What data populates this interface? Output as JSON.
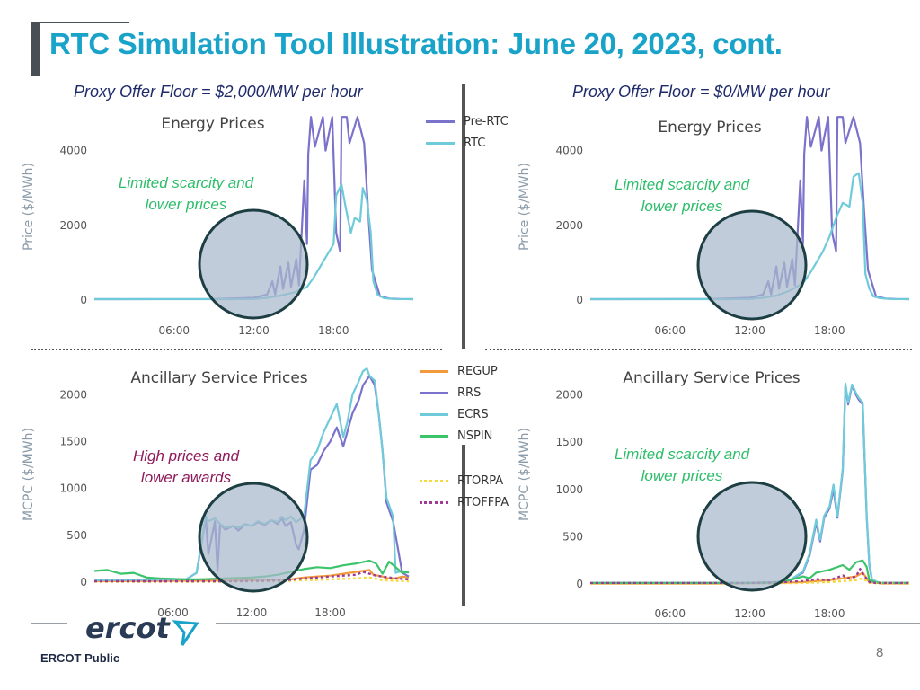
{
  "page_title": "RTC Simulation Tool Illustration: June 20, 2023, cont.",
  "floor_left": "Proxy Offer Floor = $2,000/MW per hour",
  "floor_right": "Proxy Offer Floor = $0/MW per hour",
  "footer": {
    "left": "ERCOT Public",
    "page_number": "8",
    "logo_text": "ercot"
  },
  "colors": {
    "pre_rtc": "#7b72cc",
    "rtc": "#6fcbd9",
    "regup": "#f39a3c",
    "rrs": "#7b72cc",
    "ecrs": "#6fcbd9",
    "nspin": "#3cc46a",
    "rtorpa": "#f7d83a",
    "rtoffpa": "#9e3c95",
    "annot_green": "#2ebd6b",
    "annot_purple": "#8e1a5a",
    "circle_fill": "#a9b9cc",
    "circle_stroke": "#1d3f44"
  },
  "energy_legend": [
    {
      "key": "pre_rtc",
      "label": "Pre-RTC",
      "style": "solid"
    },
    {
      "key": "rtc",
      "label": "RTC",
      "style": "solid"
    }
  ],
  "as_legend": [
    {
      "key": "regup",
      "label": "REGUP",
      "style": "solid"
    },
    {
      "key": "rrs",
      "label": "RRS",
      "style": "solid"
    },
    {
      "key": "ecrs",
      "label": "ECRS",
      "style": "solid"
    },
    {
      "key": "nspin",
      "label": "NSPIN",
      "style": "solid"
    },
    {
      "key": "rtorpa",
      "label": "RTORPA",
      "style": "dashed"
    },
    {
      "key": "rtoffpa",
      "label": "RTOFFPA",
      "style": "dashed"
    }
  ],
  "annotations": {
    "tl": {
      "line1": "Limited scarcity and",
      "line2": "lower prices",
      "color": "annot_green"
    },
    "tr": {
      "line1": "Limited scarcity and",
      "line2": "lower prices",
      "color": "annot_green"
    },
    "bl": {
      "line1": "High prices and",
      "line2": "lower awards",
      "color": "annot_purple"
    },
    "br": {
      "line1": "Limited scarcity and",
      "line2": "lower prices",
      "color": "annot_green"
    }
  },
  "chart_data": [
    {
      "id": "energy_left",
      "type": "line",
      "title": "Energy Prices",
      "xlabel": "",
      "ylabel": "Price ($/MWh)",
      "xlim": [
        0,
        24
      ],
      "ylim": [
        0,
        5000
      ],
      "grid": false,
      "xticks": [
        6,
        12,
        18
      ],
      "xtick_labels": [
        "06:00",
        "12:00",
        "18:00"
      ],
      "yticks": [
        0,
        2000,
        4000
      ],
      "ytick_labels": [
        "0",
        "2000",
        "4000"
      ],
      "series": [
        {
          "name": "Pre-RTC",
          "color_key": "pre_rtc",
          "x": [
            0,
            9,
            12,
            13,
            13.4,
            13.6,
            14,
            14.2,
            14.6,
            14.8,
            15.2,
            15.4,
            15.8,
            16,
            16.1,
            16.3,
            16.6,
            17.2,
            17.4,
            17.9,
            18.2,
            18.5,
            18.6,
            19,
            19.2,
            19.8,
            20.3,
            20.6,
            20.9,
            21.5,
            22.2,
            23,
            24
          ],
          "y": [
            25,
            30,
            60,
            150,
            500,
            150,
            900,
            300,
            1000,
            350,
            1100,
            400,
            3200,
            1500,
            3900,
            4900,
            4100,
            4900,
            4000,
            4900,
            1800,
            1300,
            4900,
            4900,
            4200,
            4900,
            4200,
            2400,
            800,
            100,
            40,
            30,
            25
          ]
        },
        {
          "name": "RTC",
          "color_key": "rtc",
          "x": [
            0,
            10,
            12,
            13,
            14,
            15,
            16,
            16.5,
            17,
            17.5,
            18,
            18.2,
            18.6,
            18.9,
            19.3,
            19.6,
            20,
            20.2,
            20.5,
            20.8,
            21,
            21.3,
            21.8,
            22.5,
            24
          ],
          "y": [
            25,
            25,
            30,
            60,
            120,
            200,
            350,
            600,
            900,
            1200,
            1500,
            2800,
            3100,
            2500,
            1800,
            2200,
            2100,
            3000,
            2700,
            1800,
            500,
            150,
            50,
            30,
            25
          ]
        }
      ]
    },
    {
      "id": "energy_right",
      "type": "line",
      "title": "Energy Prices",
      "xlabel": "",
      "ylabel": "Price ($/MWh)",
      "xlim": [
        0,
        24
      ],
      "ylim": [
        0,
        5000
      ],
      "grid": false,
      "xticks": [
        6,
        12,
        18
      ],
      "xtick_labels": [
        "06:00",
        "12:00",
        "18:00"
      ],
      "yticks": [
        0,
        2000,
        4000
      ],
      "ytick_labels": [
        "0",
        "2000",
        "4000"
      ],
      "series": [
        {
          "name": "Pre-RTC",
          "color_key": "pre_rtc",
          "x": [
            0,
            9,
            12,
            13,
            13.4,
            13.6,
            14,
            14.2,
            14.6,
            14.8,
            15.2,
            15.4,
            15.8,
            16,
            16.1,
            16.3,
            16.6,
            17.2,
            17.4,
            17.9,
            18.2,
            18.5,
            18.6,
            19,
            19.2,
            19.8,
            20.3,
            20.6,
            20.9,
            21.5,
            22.2,
            23,
            24
          ],
          "y": [
            25,
            30,
            60,
            150,
            500,
            150,
            900,
            300,
            1000,
            350,
            1100,
            400,
            3200,
            1500,
            3900,
            4900,
            4100,
            4900,
            4000,
            4900,
            1800,
            1300,
            4900,
            4900,
            4200,
            4900,
            4200,
            2400,
            800,
            100,
            40,
            30,
            25
          ]
        },
        {
          "name": "RTC",
          "color_key": "rtc",
          "x": [
            0,
            10,
            12,
            13,
            14,
            15,
            16,
            16.5,
            17,
            17.5,
            18,
            18.5,
            19,
            19.5,
            19.8,
            20.2,
            20.5,
            20.7,
            21,
            21.3,
            21.8,
            22.5,
            24
          ],
          "y": [
            25,
            25,
            30,
            60,
            120,
            250,
            450,
            700,
            1000,
            1300,
            1700,
            2200,
            2600,
            2500,
            3300,
            3400,
            2600,
            700,
            300,
            100,
            50,
            30,
            25
          ]
        }
      ]
    },
    {
      "id": "as_left",
      "type": "line",
      "title": "Ancillary Service Prices",
      "xlabel": "",
      "ylabel": "MCPC ($/MWh)",
      "xlim": [
        0,
        24
      ],
      "ylim": [
        0,
        2300
      ],
      "grid": false,
      "xticks": [
        6,
        12,
        18
      ],
      "xtick_labels": [
        "06:00",
        "12:00",
        "18:00"
      ],
      "yticks": [
        0,
        500,
        1000,
        1500,
        2000
      ],
      "ytick_labels": [
        "0",
        "500",
        "1000",
        "1500",
        "2000"
      ],
      "series": [
        {
          "name": "REGUP",
          "color_key": "regup",
          "style": "solid",
          "x": [
            0,
            9,
            12,
            15,
            16,
            17,
            18,
            19,
            20,
            21,
            21.3,
            22,
            22.4,
            23,
            23.5,
            24
          ],
          "y": [
            10,
            15,
            20,
            30,
            50,
            60,
            70,
            90,
            110,
            130,
            80,
            60,
            40,
            40,
            60,
            50
          ]
        },
        {
          "name": "RRS",
          "color_key": "rrs",
          "style": "solid",
          "x": [
            0,
            7,
            7.8,
            8.5,
            8.7,
            9.2,
            9.4,
            9.6,
            10,
            10.6,
            11,
            11.5,
            12,
            12.5,
            13,
            13.5,
            14,
            14.3,
            14.6,
            15,
            15.4,
            15.6,
            16,
            16.5,
            17,
            17.5,
            18,
            18.5,
            19,
            19.3,
            19.7,
            20.2,
            20.5,
            21,
            21.4,
            21.7,
            22,
            22.3,
            22.8,
            23.5,
            24
          ],
          "y": [
            20,
            30,
            100,
            680,
            300,
            650,
            120,
            620,
            560,
            600,
            550,
            620,
            600,
            640,
            610,
            660,
            620,
            680,
            600,
            640,
            400,
            350,
            550,
            1200,
            1250,
            1400,
            1500,
            1650,
            1450,
            1600,
            1800,
            1950,
            2100,
            2200,
            2100,
            1800,
            1400,
            850,
            650,
            100,
            60
          ]
        },
        {
          "name": "ECRS",
          "color_key": "ecrs",
          "style": "solid",
          "x": [
            0,
            7,
            7.8,
            8.5,
            8.7,
            9.2,
            9.6,
            10,
            10.6,
            11,
            11.5,
            12,
            12.5,
            13,
            13.5,
            14,
            14.3,
            14.6,
            15,
            15.4,
            16,
            16.5,
            17,
            17.5,
            18,
            18.5,
            19,
            19.3,
            19.7,
            20.2,
            20.5,
            20.8,
            21,
            21.4,
            21.7,
            22,
            22.3,
            22.8,
            23,
            23.5,
            24
          ],
          "y": [
            20,
            30,
            100,
            700,
            650,
            680,
            620,
            580,
            600,
            580,
            620,
            600,
            650,
            620,
            660,
            640,
            700,
            660,
            700,
            640,
            700,
            1300,
            1400,
            1600,
            1750,
            1900,
            1550,
            1700,
            2000,
            2150,
            2250,
            2280,
            2200,
            2150,
            1800,
            1400,
            900,
            700,
            100,
            120,
            100
          ]
        },
        {
          "name": "NSPIN",
          "color_key": "nspin",
          "style": "solid",
          "x": [
            0,
            1,
            2,
            3,
            4,
            5,
            6,
            7,
            8,
            9,
            10,
            11,
            12,
            13,
            14,
            15,
            16,
            17,
            18,
            19,
            20,
            21,
            21.5,
            22,
            22.5,
            23,
            23.5,
            24
          ],
          "y": [
            120,
            130,
            90,
            100,
            50,
            40,
            35,
            30,
            30,
            35,
            40,
            45,
            50,
            60,
            80,
            110,
            140,
            160,
            150,
            180,
            200,
            230,
            200,
            90,
            220,
            160,
            100,
            110
          ]
        },
        {
          "name": "RTORPA",
          "color_key": "rtorpa",
          "style": "dashed",
          "x": [
            0,
            10,
            14,
            16,
            18,
            20,
            21,
            22,
            24
          ],
          "y": [
            5,
            5,
            10,
            20,
            30,
            40,
            50,
            20,
            10
          ]
        },
        {
          "name": "RTOFFPA",
          "color_key": "rtoffpa",
          "style": "dashed",
          "x": [
            0,
            10,
            13,
            15,
            16,
            17,
            18,
            19,
            20,
            20.5,
            21,
            21.5,
            22,
            22.5,
            23,
            24
          ],
          "y": [
            10,
            10,
            15,
            25,
            40,
            50,
            60,
            70,
            80,
            110,
            90,
            70,
            60,
            50,
            40,
            30
          ]
        }
      ]
    },
    {
      "id": "as_right",
      "type": "line",
      "title": "Ancillary Service Prices",
      "xlabel": "",
      "ylabel": "MCPC ($/MWh)",
      "xlim": [
        0,
        24
      ],
      "ylim": [
        0,
        2300
      ],
      "grid": false,
      "xticks": [
        6,
        12,
        18
      ],
      "xtick_labels": [
        "06:00",
        "12:00",
        "18:00"
      ],
      "yticks": [
        0,
        500,
        1000,
        1500,
        2000
      ],
      "ytick_labels": [
        "0",
        "500",
        "1000",
        "1500",
        "2000"
      ],
      "series": [
        {
          "name": "REGUP",
          "color_key": "regup",
          "style": "solid",
          "x": [
            0,
            10,
            14,
            16,
            18,
            19,
            20,
            20.5,
            21,
            22,
            24
          ],
          "y": [
            5,
            5,
            10,
            20,
            40,
            60,
            80,
            120,
            20,
            5,
            5
          ]
        },
        {
          "name": "RRS",
          "color_key": "rrs",
          "style": "solid",
          "x": [
            0,
            12,
            14,
            15,
            16,
            16.5,
            17,
            17.3,
            17.6,
            18,
            18.3,
            18.6,
            19,
            19.2,
            19.4,
            19.7,
            20,
            20.2,
            20.5,
            20.8,
            21,
            21.2,
            21.6,
            22,
            24
          ],
          "y": [
            10,
            10,
            20,
            40,
            120,
            300,
            650,
            450,
            700,
            800,
            1000,
            700,
            1200,
            2100,
            1900,
            2100,
            2000,
            1950,
            1900,
            700,
            200,
            40,
            20,
            10,
            10
          ]
        },
        {
          "name": "ECRS",
          "color_key": "ecrs",
          "style": "solid",
          "x": [
            0,
            12,
            14,
            15,
            16,
            16.5,
            17,
            17.3,
            17.6,
            18,
            18.3,
            18.6,
            19,
            19.2,
            19.4,
            19.7,
            20,
            20.2,
            20.5,
            20.8,
            21,
            21.2,
            21.6,
            22,
            24
          ],
          "y": [
            10,
            10,
            20,
            40,
            130,
            320,
            680,
            470,
            720,
            820,
            1050,
            720,
            1220,
            2120,
            1920,
            2110,
            2020,
            1970,
            1920,
            720,
            220,
            50,
            20,
            10,
            10
          ]
        },
        {
          "name": "NSPIN",
          "color_key": "nspin",
          "style": "solid",
          "x": [
            0,
            12,
            14,
            15,
            16,
            16.5,
            17,
            18,
            19,
            19.5,
            20,
            20.5,
            20.8,
            21,
            21.5,
            22,
            24
          ],
          "y": [
            10,
            10,
            15,
            40,
            80,
            60,
            120,
            150,
            200,
            150,
            230,
            250,
            180,
            40,
            15,
            10,
            10
          ]
        },
        {
          "name": "RTORPA",
          "color_key": "rtorpa",
          "style": "dashed",
          "x": [
            0,
            12,
            16,
            18,
            20,
            20.5,
            21,
            24
          ],
          "y": [
            5,
            5,
            10,
            20,
            40,
            60,
            10,
            5
          ]
        },
        {
          "name": "RTOFFPA",
          "color_key": "rtoffpa",
          "style": "dashed",
          "x": [
            0,
            12,
            14,
            16,
            17,
            18,
            19,
            19.5,
            20,
            20.3,
            20.6,
            21,
            21.5,
            24
          ],
          "y": [
            10,
            10,
            15,
            30,
            50,
            40,
            90,
            60,
            80,
            160,
            90,
            20,
            10,
            10
          ]
        }
      ]
    }
  ]
}
